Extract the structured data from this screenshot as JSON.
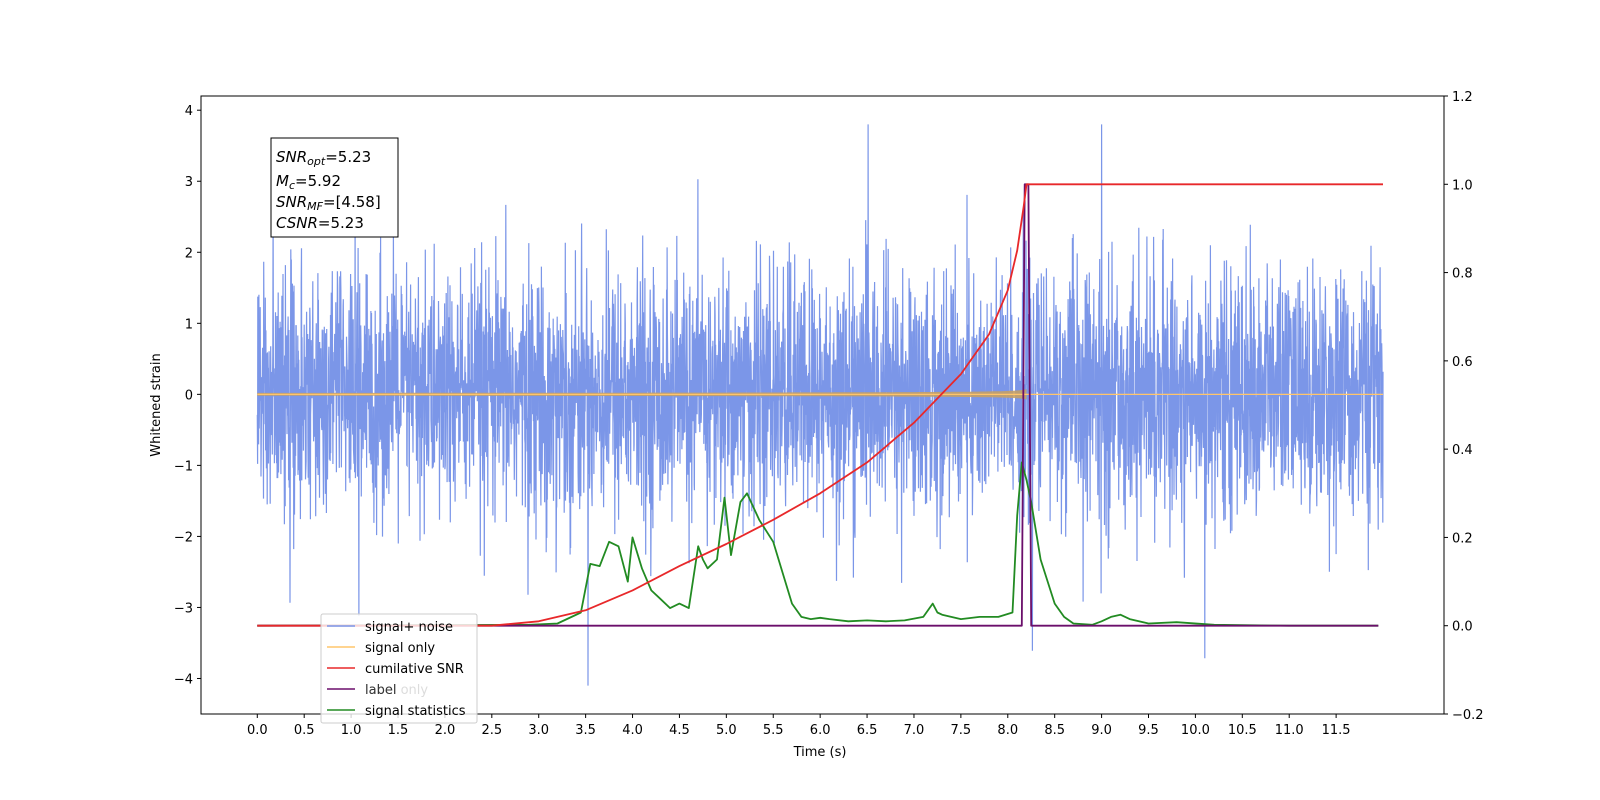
{
  "chart_data": {
    "type": "line",
    "xlabel": "Time (s)",
    "ylabel": "Whitened strain",
    "xlim": [
      -0.6,
      12.65
    ],
    "ylim": [
      -4.5,
      4.2
    ],
    "y2lim": [
      -0.2,
      1.2
    ],
    "grid": false,
    "legend_placement": "lower-left",
    "x_ticks": [
      "0.0",
      "0.5",
      "1.0",
      "1.5",
      "2.0",
      "2.5",
      "3.0",
      "3.5",
      "4.0",
      "4.5",
      "5.0",
      "5.5",
      "6.0",
      "6.5",
      "7.0",
      "7.5",
      "8.0",
      "8.5",
      "9.0",
      "9.5",
      "10.0",
      "10.5",
      "11.0",
      "11.5"
    ],
    "y_ticks": [
      "4",
      "3",
      "2",
      "1",
      "0",
      "−1",
      "−2",
      "−3",
      "−4"
    ],
    "y2_ticks": [
      "1.2",
      "1.0",
      "0.8",
      "0.6",
      "0.4",
      "0.2",
      "0.0",
      "−0.2"
    ],
    "annotation": {
      "snr_opt": {
        "base": "SNR",
        "sub": "opt",
        "value": "=5.23"
      },
      "mc": {
        "base": "M",
        "sub": "c",
        "value": "=5.92"
      },
      "snr_mf": {
        "base": "SNR",
        "sub": "MF",
        "value": "=[4.58]"
      },
      "csnr": {
        "base": "CSNR",
        "value": "=5.23"
      }
    },
    "series": [
      {
        "name": "signal+ noise",
        "color": "#7b96e8",
        "axis": "left",
        "description_values": {
          "x_start": 0.0,
          "x_end": 12.0,
          "noise_std": 0.85,
          "range": [
            -4.1,
            3.8
          ]
        }
      },
      {
        "name": "signal only",
        "color": "#ffc56b",
        "axis": "left",
        "description_values": {
          "x_start": 0.0,
          "x_end": 8.2,
          "amplitude_start": 0.02,
          "amplitude_peak": 0.35
        }
      },
      {
        "name": "cumilative SNR",
        "color": "#e8282a",
        "axis": "right",
        "x": [
          0.0,
          2.5,
          3.0,
          3.5,
          4.0,
          4.5,
          5.0,
          5.5,
          6.0,
          6.5,
          7.0,
          7.5,
          7.8,
          8.0,
          8.1,
          8.17,
          8.2,
          12.0
        ],
        "y": [
          0.0,
          0.0,
          0.01,
          0.035,
          0.08,
          0.135,
          0.185,
          0.24,
          0.3,
          0.37,
          0.46,
          0.57,
          0.66,
          0.76,
          0.85,
          0.95,
          1.0,
          1.0
        ]
      },
      {
        "name": "label",
        "color": "#6b0f6b",
        "axis": "right",
        "x": [
          0.0,
          8.15,
          8.18,
          8.22,
          8.25,
          11.95
        ],
        "y": [
          0.0,
          0.0,
          1.0,
          1.0,
          0.0,
          0.0
        ]
      },
      {
        "name": "label only",
        "color": "#ffffff",
        "axis": "right",
        "x": [],
        "y": []
      },
      {
        "name": "signal statistics",
        "color": "#228b22",
        "axis": "right",
        "x": [
          0.0,
          2.9,
          3.2,
          3.45,
          3.55,
          3.65,
          3.75,
          3.85,
          3.95,
          4.0,
          4.1,
          4.2,
          4.3,
          4.4,
          4.5,
          4.6,
          4.7,
          4.75,
          4.8,
          4.9,
          4.98,
          5.05,
          5.15,
          5.22,
          5.35,
          5.5,
          5.6,
          5.7,
          5.8,
          5.9,
          6.0,
          6.1,
          6.3,
          6.5,
          6.7,
          6.9,
          7.1,
          7.2,
          7.25,
          7.3,
          7.5,
          7.7,
          7.9,
          8.05,
          8.1,
          8.15,
          8.2,
          8.25,
          8.35,
          8.5,
          8.6,
          8.7,
          8.9,
          9.0,
          9.1,
          9.2,
          9.3,
          9.5,
          9.8,
          10.2,
          11.0,
          11.95
        ],
        "y": [
          0.0,
          0.002,
          0.005,
          0.03,
          0.14,
          0.135,
          0.19,
          0.18,
          0.1,
          0.2,
          0.13,
          0.08,
          0.06,
          0.04,
          0.05,
          0.04,
          0.18,
          0.15,
          0.13,
          0.15,
          0.29,
          0.16,
          0.28,
          0.3,
          0.24,
          0.19,
          0.12,
          0.05,
          0.02,
          0.015,
          0.018,
          0.015,
          0.01,
          0.012,
          0.01,
          0.012,
          0.02,
          0.05,
          0.03,
          0.025,
          0.015,
          0.02,
          0.02,
          0.03,
          0.25,
          0.37,
          0.33,
          0.28,
          0.15,
          0.05,
          0.02,
          0.005,
          0.002,
          0.01,
          0.02,
          0.025,
          0.015,
          0.005,
          0.008,
          0.002,
          0.0,
          0.0
        ]
      }
    ]
  }
}
